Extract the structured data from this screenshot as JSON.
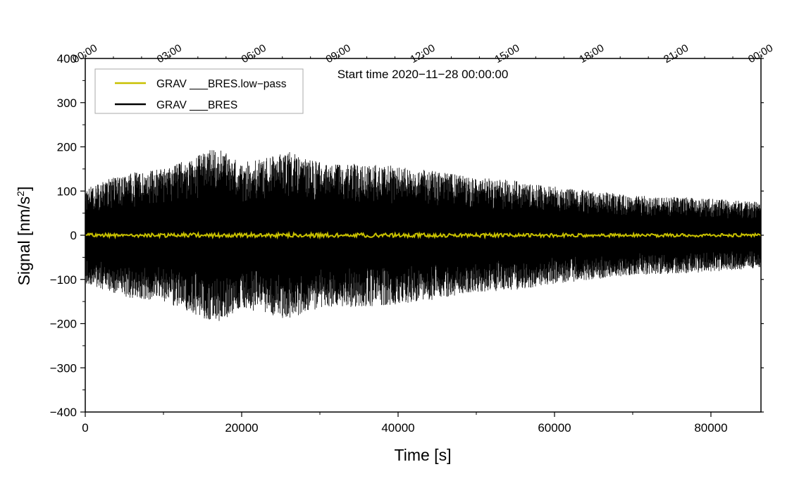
{
  "chart_data": {
    "type": "line",
    "title": "",
    "subtitle": "Start time 2020−11−28 00:00:00",
    "xlabel": "Time [s]",
    "ylabel_prefix": "Signal [nm/s",
    "ylabel_sup": "2",
    "ylabel_suffix": "]",
    "xlim": [
      0,
      86400
    ],
    "ylim": [
      -400,
      400
    ],
    "x_ticks": [
      0,
      20000,
      40000,
      60000,
      80000
    ],
    "x_tick_labels": [
      "0",
      "20000",
      "40000",
      "60000",
      "80000"
    ],
    "x_minor_step": 10000,
    "y_ticks": [
      400,
      300,
      200,
      100,
      0,
      -100,
      -200,
      -300,
      -400
    ],
    "y_tick_labels": [
      "400",
      "300",
      "200",
      "100",
      "0",
      "−100",
      "−200",
      "−300",
      "−400"
    ],
    "y_minor_step": 50,
    "top_axis_ticks": [
      0,
      10800,
      21600,
      32400,
      43200,
      54000,
      64800,
      75600,
      86400
    ],
    "top_axis_labels": [
      "00:00",
      "03:00",
      "06:00",
      "09:00",
      "12:00",
      "15:00",
      "18:00",
      "21:00",
      "00:00"
    ],
    "legend_position": "top-left",
    "series": [
      {
        "name": "GRAV ___BRES.low−pass",
        "color": "#c8c000",
        "line_width": 2,
        "approx_amplitude": 5
      },
      {
        "name": "GRAV ___BRES",
        "color": "#000000",
        "line_width": 1,
        "envelope_samples": [
          {
            "t": 0,
            "amplitude": 110
          },
          {
            "t": 5000,
            "amplitude": 140
          },
          {
            "t": 10000,
            "amplitude": 150
          },
          {
            "t": 16800,
            "amplitude": 200
          },
          {
            "t": 20000,
            "amplitude": 165
          },
          {
            "t": 25800,
            "amplitude": 190
          },
          {
            "t": 30000,
            "amplitude": 165
          },
          {
            "t": 38000,
            "amplitude": 160
          },
          {
            "t": 45000,
            "amplitude": 145
          },
          {
            "t": 50000,
            "amplitude": 130
          },
          {
            "t": 55000,
            "amplitude": 125
          },
          {
            "t": 60000,
            "amplitude": 110
          },
          {
            "t": 65000,
            "amplitude": 100
          },
          {
            "t": 70000,
            "amplitude": 90
          },
          {
            "t": 78000,
            "amplitude": 85
          },
          {
            "t": 86400,
            "amplitude": 75
          }
        ]
      }
    ]
  }
}
